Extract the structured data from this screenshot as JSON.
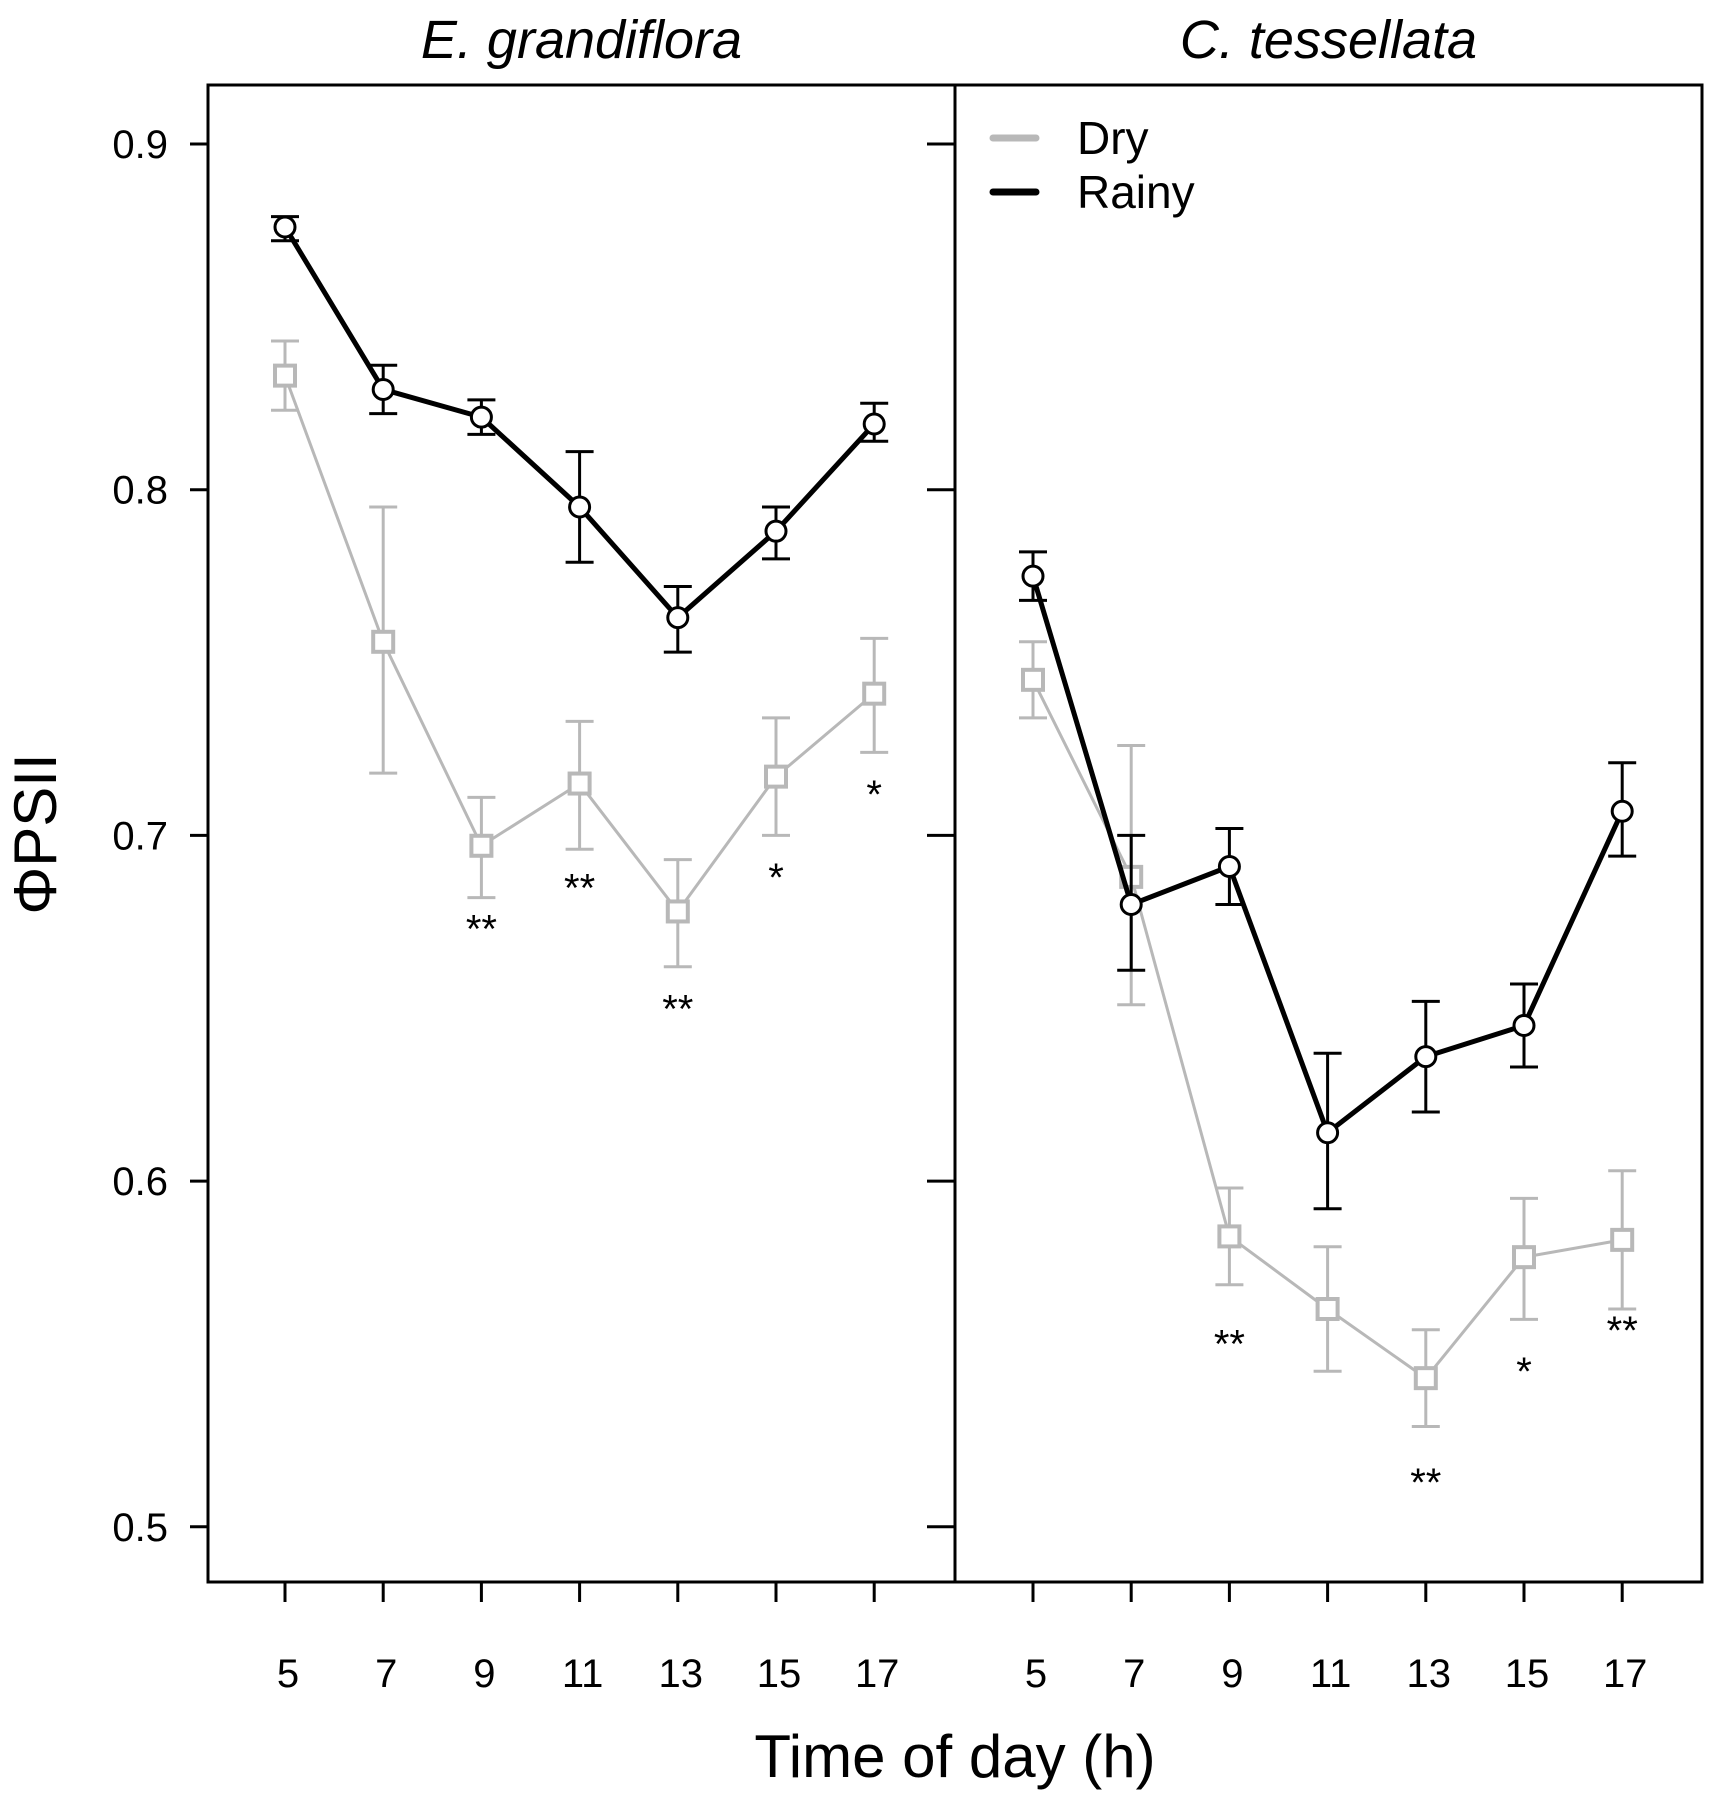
{
  "chart_data": {
    "type": "line",
    "xlabel": "Time of day (h)",
    "ylabel": "ΦPSII",
    "ylim": [
      0.48,
      0.92
    ],
    "yticks": [
      0.5,
      0.6,
      0.7,
      0.8,
      0.9
    ],
    "ytick_labels": [
      "0.5",
      "0.6",
      "0.7",
      "0.8",
      "0.9"
    ],
    "x": [
      5,
      7,
      9,
      11,
      13,
      15,
      17
    ],
    "xtick_labels": [
      "5",
      "7",
      "9",
      "11",
      "13",
      "15",
      "17"
    ],
    "legend": {
      "position": "top-left of right panel",
      "entries": [
        {
          "name": "Dry",
          "color": "#b8b8b8"
        },
        {
          "name": "Rainy",
          "color": "#000000"
        }
      ]
    },
    "colors": {
      "dry": "#b8b8b8",
      "rainy": "#000000"
    },
    "panels": [
      {
        "title": "E. grandiflora",
        "series": [
          {
            "name": "Rainy",
            "marker": "circle",
            "values": [
              0.876,
              0.829,
              0.821,
              0.795,
              0.763,
              0.788,
              0.819
            ],
            "err_low": [
              0.872,
              0.822,
              0.816,
              0.779,
              0.753,
              0.78,
              0.814
            ],
            "err_high": [
              0.879,
              0.836,
              0.826,
              0.811,
              0.772,
              0.795,
              0.825
            ]
          },
          {
            "name": "Dry",
            "marker": "square",
            "values": [
              0.833,
              0.756,
              0.697,
              0.715,
              0.678,
              0.717,
              0.741
            ],
            "err_low": [
              0.823,
              0.718,
              0.682,
              0.696,
              0.662,
              0.7,
              0.724
            ],
            "err_high": [
              0.843,
              0.795,
              0.711,
              0.733,
              0.693,
              0.734,
              0.757
            ]
          }
        ],
        "annotations": [
          {
            "x": 9,
            "y": 0.673,
            "text": "**"
          },
          {
            "x": 11,
            "y": 0.685,
            "text": "**"
          },
          {
            "x": 13,
            "y": 0.65,
            "text": "**"
          },
          {
            "x": 15,
            "y": 0.688,
            "text": "*"
          },
          {
            "x": 17,
            "y": 0.712,
            "text": "*"
          }
        ]
      },
      {
        "title": "C. tessellata",
        "series": [
          {
            "name": "Rainy",
            "marker": "circle",
            "values": [
              0.775,
              0.68,
              0.691,
              0.614,
              0.636,
              0.645,
              0.707
            ],
            "err_low": [
              0.768,
              0.661,
              0.68,
              0.592,
              0.62,
              0.633,
              0.694
            ],
            "err_high": [
              0.782,
              0.7,
              0.702,
              0.637,
              0.652,
              0.657,
              0.721
            ]
          },
          {
            "name": "Dry",
            "marker": "square",
            "values": [
              0.745,
              0.688,
              0.584,
              0.563,
              0.543,
              0.578,
              0.583
            ],
            "err_low": [
              0.734,
              0.651,
              0.57,
              0.545,
              0.529,
              0.56,
              0.563
            ],
            "err_high": [
              0.756,
              0.726,
              0.598,
              0.581,
              0.557,
              0.595,
              0.603
            ]
          }
        ],
        "annotations": [
          {
            "x": 9,
            "y": 0.553,
            "text": "**"
          },
          {
            "x": 13,
            "y": 0.513,
            "text": "**"
          },
          {
            "x": 15,
            "y": 0.545,
            "text": "*"
          },
          {
            "x": 17,
            "y": 0.557,
            "text": "**"
          }
        ]
      }
    ]
  }
}
